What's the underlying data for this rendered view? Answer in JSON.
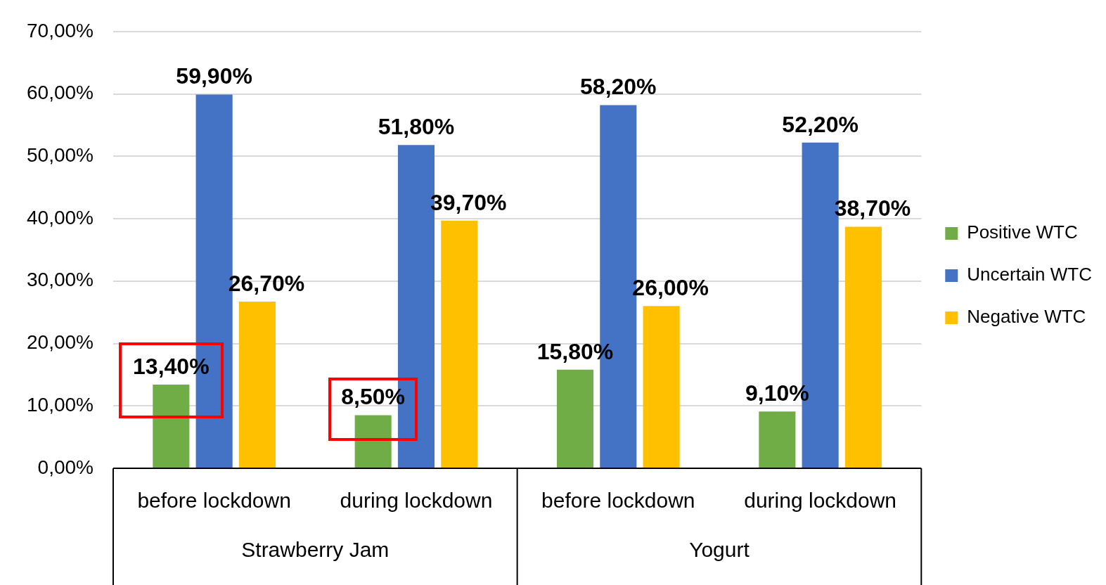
{
  "chart_data": {
    "type": "bar",
    "categories": [
      "before lockdown",
      "during lockdown",
      "before lockdown",
      "during lockdown"
    ],
    "series": [
      {
        "name": "Positive WTC",
        "color": "#70ad47",
        "values": [
          13.4,
          8.5,
          15.8,
          9.1
        ],
        "value_labels": [
          "13,40%",
          "8,50%",
          "15,80%",
          "9,10%"
        ]
      },
      {
        "name": "Uncertain WTC",
        "color": "#4472c4",
        "values": [
          59.9,
          51.8,
          58.2,
          52.2
        ],
        "value_labels": [
          "59,90%",
          "51,80%",
          "58,20%",
          "52,20%"
        ]
      },
      {
        "name": "Negative WTC",
        "color": "#ffc000",
        "values": [
          26.7,
          39.7,
          26.0,
          38.7
        ],
        "value_labels": [
          "26,70%",
          "39,70%",
          "26,00%",
          "38,70%"
        ]
      }
    ],
    "ylim": [
      0,
      70
    ],
    "yticks": [
      {
        "value": 0,
        "label": "0,00%"
      },
      {
        "value": 10,
        "label": "10,00%"
      },
      {
        "value": 20,
        "label": "20,00%"
      },
      {
        "value": 30,
        "label": "30,00%"
      },
      {
        "value": 40,
        "label": "40,00%"
      },
      {
        "value": 50,
        "label": "50,00%"
      },
      {
        "value": 60,
        "label": "60,00%"
      },
      {
        "value": 70,
        "label": "70,00%"
      }
    ],
    "annotations": [
      "Strawberry Jam",
      "Yogurt"
    ],
    "grid": "y",
    "legend": "right"
  }
}
